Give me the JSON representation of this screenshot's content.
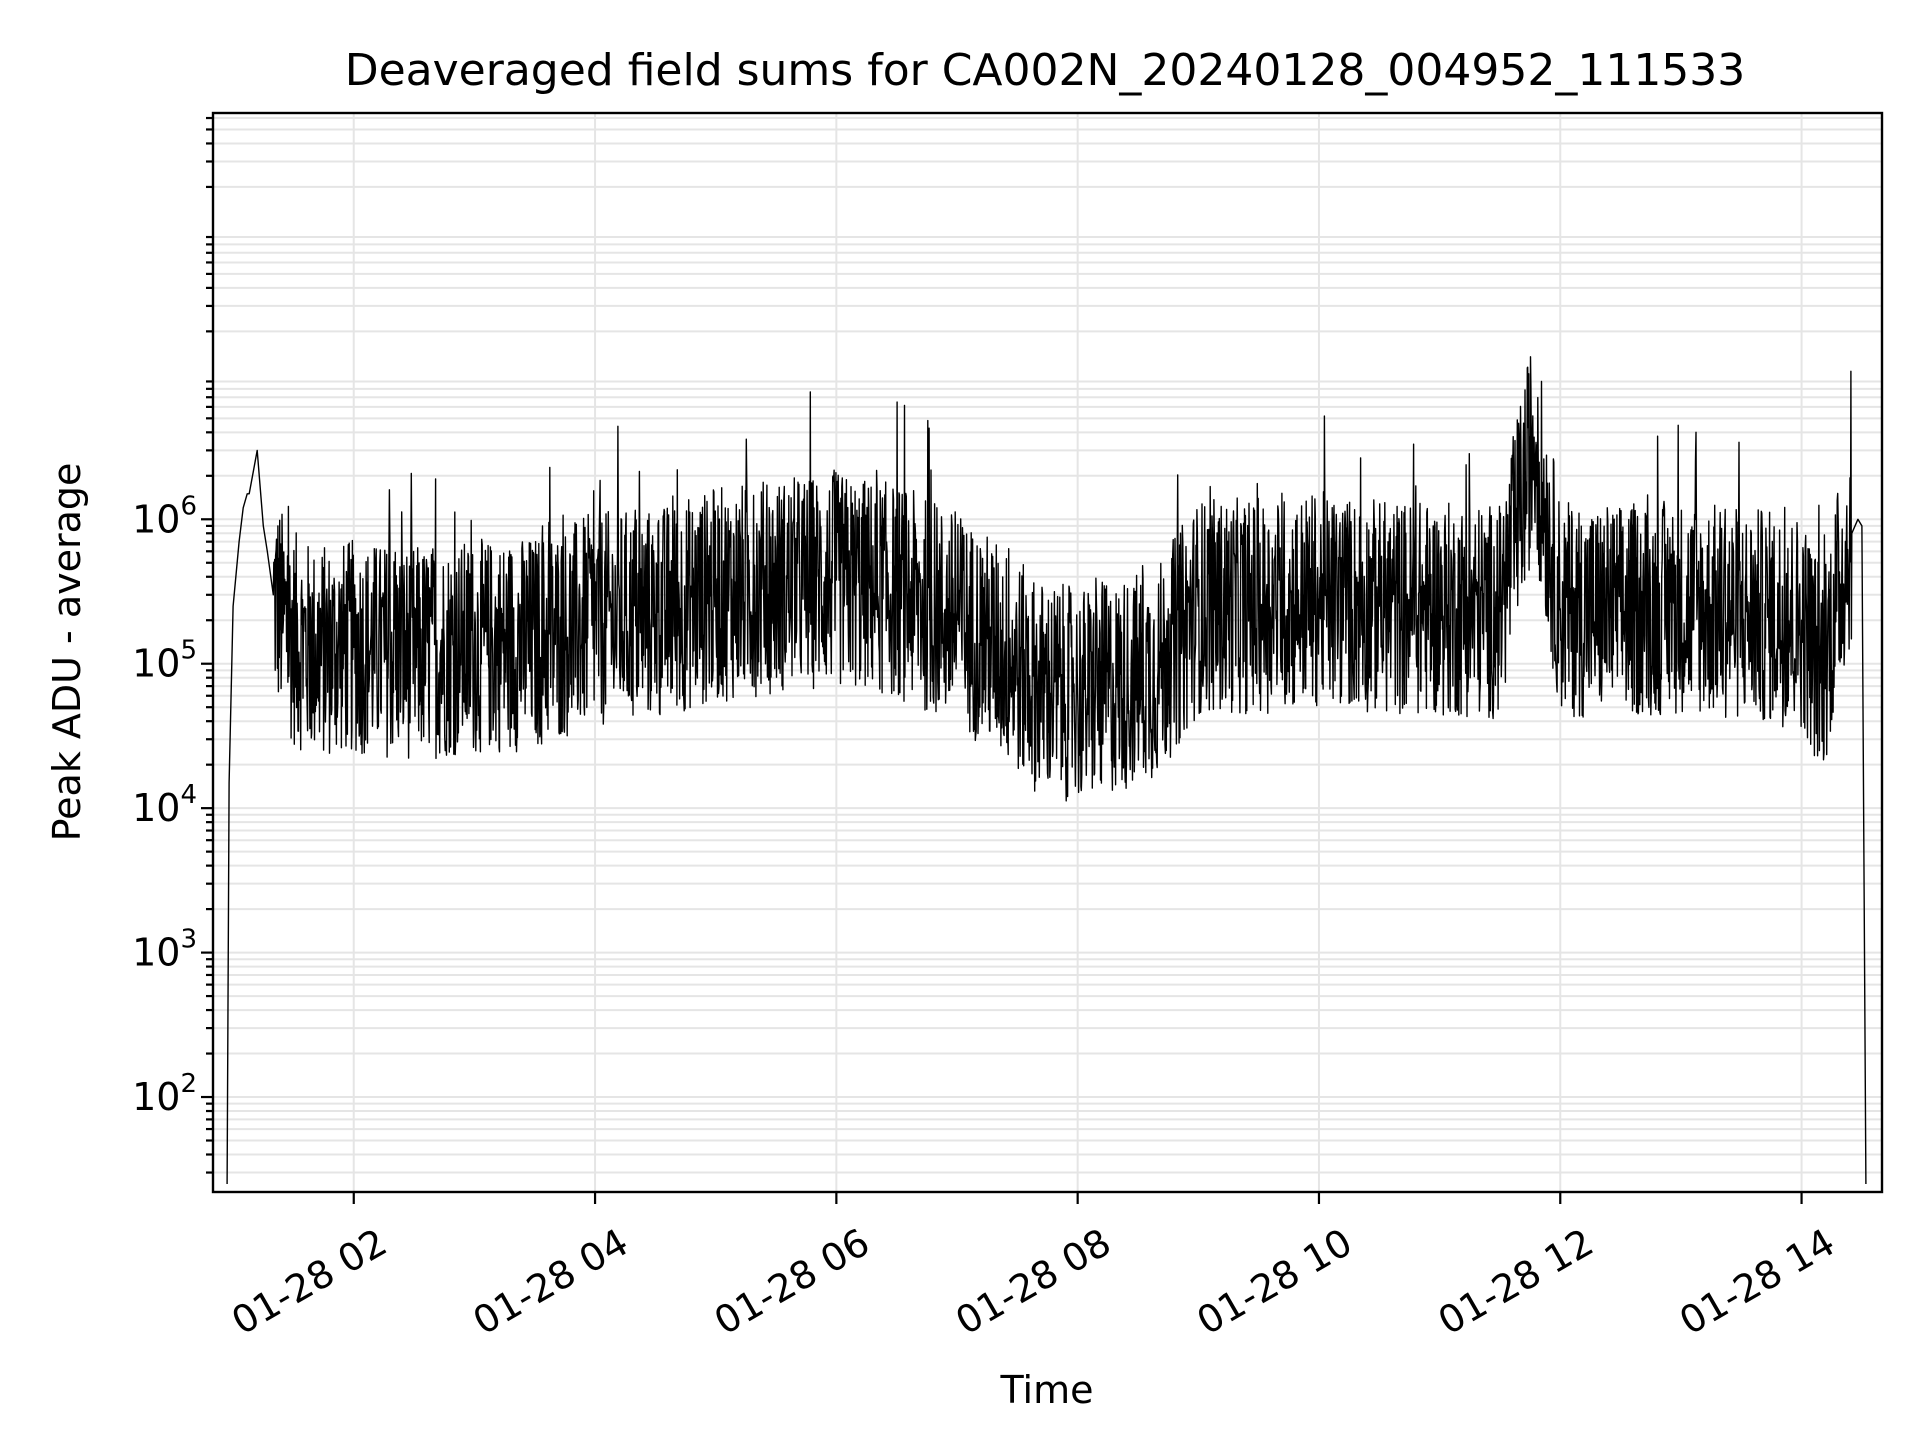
{
  "chart_data": {
    "type": "line",
    "title": "Deaveraged field sums for CA002N_20240128_004952_111533",
    "xlabel": "Time",
    "ylabel": "Peak ADU - average",
    "yscale": "log",
    "ylim": [
      22,
      650000000
    ],
    "xlim": [
      "2024-01-28 00:50",
      "2024-01-28 14:40"
    ],
    "grid": true,
    "x_ticks": [
      {
        "value": "2024-01-28 02:00",
        "label": "01-28 02"
      },
      {
        "value": "2024-01-28 04:00",
        "label": "01-28 04"
      },
      {
        "value": "2024-01-28 06:00",
        "label": "01-28 06"
      },
      {
        "value": "2024-01-28 08:00",
        "label": "01-28 08"
      },
      {
        "value": "2024-01-28 10:00",
        "label": "01-28 10"
      },
      {
        "value": "2024-01-28 12:00",
        "label": "01-28 12"
      },
      {
        "value": "2024-01-28 14:00",
        "label": "01-28 14"
      }
    ],
    "y_ticks": [
      {
        "value": 100,
        "base": "10",
        "exp": "2"
      },
      {
        "value": 1000,
        "base": "10",
        "exp": "3"
      },
      {
        "value": 10000,
        "base": "10",
        "exp": "4"
      },
      {
        "value": 100000,
        "base": "10",
        "exp": "5"
      },
      {
        "value": 1000000,
        "base": "10",
        "exp": "6"
      }
    ],
    "series": [
      {
        "color": "#000000",
        "x": [
          "2024-01-28 00:57",
          "2024-01-28 00:58",
          "2024-01-28 01:00",
          "2024-01-28 01:03",
          "2024-01-28 01:05",
          "2024-01-28 01:07",
          "2024-01-28 01:08",
          "2024-01-28 01:12",
          "2024-01-28 01:15",
          "2024-01-28 01:17",
          "2024-01-28 01:20",
          "2024-01-28 01:25",
          "2024-01-28 01:30",
          "2024-01-28 01:40",
          "2024-01-28 02:00",
          "2024-01-28 02:30",
          "2024-01-28 03:00",
          "2024-01-28 03:30",
          "2024-01-28 04:00",
          "2024-01-28 04:30",
          "2024-01-28 05:00",
          "2024-01-28 05:30",
          "2024-01-28 06:00",
          "2024-01-28 06:30",
          "2024-01-28 07:00",
          "2024-01-28 07:20",
          "2024-01-28 07:40",
          "2024-01-28 08:00",
          "2024-01-28 08:20",
          "2024-01-28 08:40",
          "2024-01-28 09:00",
          "2024-01-28 09:30",
          "2024-01-28 10:00",
          "2024-01-28 10:30",
          "2024-01-28 11:00",
          "2024-01-28 11:30",
          "2024-01-28 11:47",
          "2024-01-28 12:00",
          "2024-01-28 12:30",
          "2024-01-28 13:00",
          "2024-01-28 13:30",
          "2024-01-28 14:00",
          "2024-01-28 14:10",
          "2024-01-28 14:20",
          "2024-01-28 14:25",
          "2024-01-28 14:28",
          "2024-01-28 14:30",
          "2024-01-28 14:32"
        ],
        "y": [
          25,
          15000,
          250000,
          700000,
          1200000,
          1500000,
          1500000,
          3000000,
          900000,
          600000,
          300000,
          200000,
          150000,
          120000,
          130000,
          120000,
          130000,
          140000,
          200000,
          220000,
          300000,
          350000,
          380000,
          320000,
          200000,
          130000,
          70000,
          60000,
          70000,
          90000,
          250000,
          250000,
          280000,
          250000,
          240000,
          230000,
          3700000,
          240000,
          230000,
          250000,
          220000,
          200000,
          90000,
          400000,
          800000,
          1000000,
          900000,
          25
        ]
      }
    ]
  }
}
